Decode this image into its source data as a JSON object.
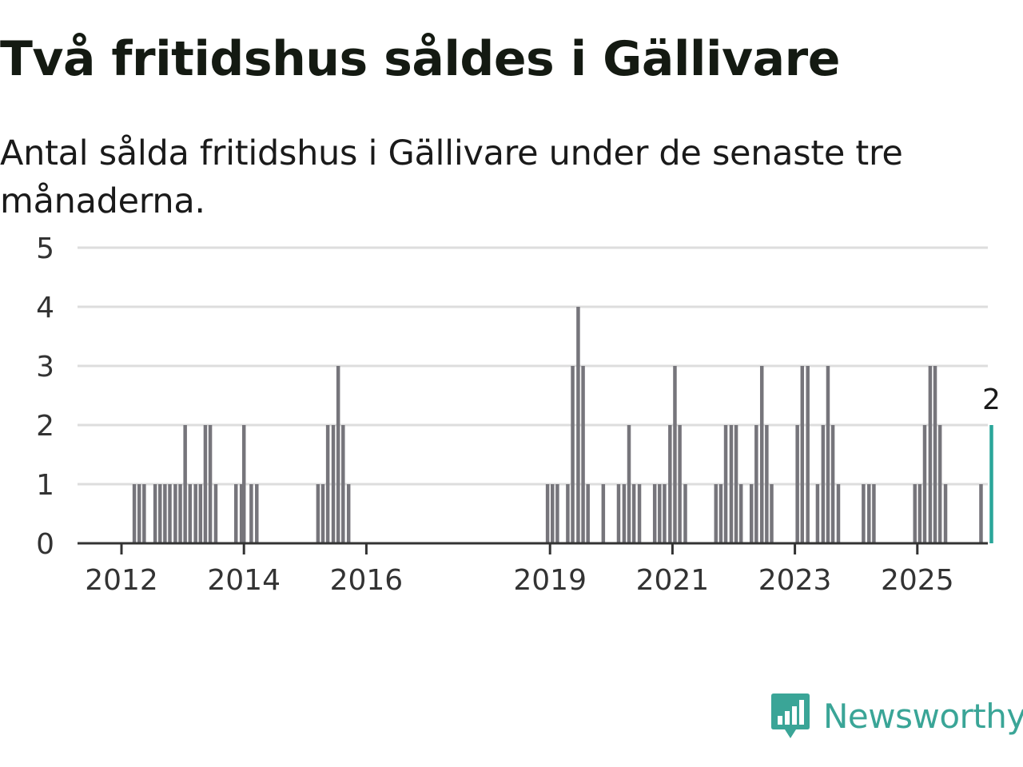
{
  "title": "Två fritidshus såldes i Gällivare",
  "subtitle": "Antal sålda fritidshus i Gällivare under de senaste tre månaderna.",
  "brand": {
    "name": "Newsworthy",
    "icon": "newsworthy-logo-icon"
  },
  "colors": {
    "bar": "#76757b",
    "highlight": "#2aa69a",
    "grid": "#dddddd",
    "axis": "#333333",
    "brand": "#3aa597"
  },
  "chart_data": {
    "type": "bar",
    "ylim": [
      0,
      5
    ],
    "yticks": [
      0,
      1,
      2,
      3,
      4,
      5
    ],
    "xticks": [
      {
        "label": "2012",
        "year": 2012
      },
      {
        "label": "2014",
        "year": 2014
      },
      {
        "label": "2016",
        "year": 2016
      },
      {
        "label": "2019",
        "year": 2019
      },
      {
        "label": "2021",
        "year": 2021
      },
      {
        "label": "2023",
        "year": 2023
      },
      {
        "label": "2025",
        "year": 2025
      }
    ],
    "x_unit": "year (monthly bars)",
    "bars": [
      {
        "t": 2012.21,
        "v": 1
      },
      {
        "t": 2012.29,
        "v": 1
      },
      {
        "t": 2012.37,
        "v": 1
      },
      {
        "t": 2012.55,
        "v": 1
      },
      {
        "t": 2012.63,
        "v": 1
      },
      {
        "t": 2012.71,
        "v": 1
      },
      {
        "t": 2012.79,
        "v": 1
      },
      {
        "t": 2012.88,
        "v": 1
      },
      {
        "t": 2012.96,
        "v": 1
      },
      {
        "t": 2013.04,
        "v": 2
      },
      {
        "t": 2013.12,
        "v": 1
      },
      {
        "t": 2013.21,
        "v": 1
      },
      {
        "t": 2013.29,
        "v": 1
      },
      {
        "t": 2013.37,
        "v": 2
      },
      {
        "t": 2013.45,
        "v": 2
      },
      {
        "t": 2013.54,
        "v": 1
      },
      {
        "t": 2013.87,
        "v": 1
      },
      {
        "t": 2013.96,
        "v": 1
      },
      {
        "t": 2014.0,
        "v": 2
      },
      {
        "t": 2014.12,
        "v": 1
      },
      {
        "t": 2014.21,
        "v": 1
      },
      {
        "t": 2015.21,
        "v": 1
      },
      {
        "t": 2015.29,
        "v": 1
      },
      {
        "t": 2015.37,
        "v": 2
      },
      {
        "t": 2015.46,
        "v": 2
      },
      {
        "t": 2015.54,
        "v": 3
      },
      {
        "t": 2015.62,
        "v": 2
      },
      {
        "t": 2015.71,
        "v": 1
      },
      {
        "t": 2018.96,
        "v": 1
      },
      {
        "t": 2019.04,
        "v": 1
      },
      {
        "t": 2019.12,
        "v": 1
      },
      {
        "t": 2019.29,
        "v": 1
      },
      {
        "t": 2019.37,
        "v": 3
      },
      {
        "t": 2019.46,
        "v": 4
      },
      {
        "t": 2019.54,
        "v": 3
      },
      {
        "t": 2019.62,
        "v": 1
      },
      {
        "t": 2019.87,
        "v": 1
      },
      {
        "t": 2020.12,
        "v": 1
      },
      {
        "t": 2020.21,
        "v": 1
      },
      {
        "t": 2020.29,
        "v": 2
      },
      {
        "t": 2020.37,
        "v": 1
      },
      {
        "t": 2020.46,
        "v": 1
      },
      {
        "t": 2020.71,
        "v": 1
      },
      {
        "t": 2020.79,
        "v": 1
      },
      {
        "t": 2020.87,
        "v": 1
      },
      {
        "t": 2020.96,
        "v": 2
      },
      {
        "t": 2021.04,
        "v": 3
      },
      {
        "t": 2021.12,
        "v": 2
      },
      {
        "t": 2021.21,
        "v": 1
      },
      {
        "t": 2021.71,
        "v": 1
      },
      {
        "t": 2021.79,
        "v": 1
      },
      {
        "t": 2021.87,
        "v": 2
      },
      {
        "t": 2021.96,
        "v": 2
      },
      {
        "t": 2022.04,
        "v": 2
      },
      {
        "t": 2022.12,
        "v": 1
      },
      {
        "t": 2022.29,
        "v": 1
      },
      {
        "t": 2022.37,
        "v": 2
      },
      {
        "t": 2022.46,
        "v": 3
      },
      {
        "t": 2022.54,
        "v": 2
      },
      {
        "t": 2022.62,
        "v": 1
      },
      {
        "t": 2023.04,
        "v": 2
      },
      {
        "t": 2023.12,
        "v": 3
      },
      {
        "t": 2023.21,
        "v": 3
      },
      {
        "t": 2023.37,
        "v": 1
      },
      {
        "t": 2023.46,
        "v": 2
      },
      {
        "t": 2023.54,
        "v": 3
      },
      {
        "t": 2023.62,
        "v": 2
      },
      {
        "t": 2023.71,
        "v": 1
      },
      {
        "t": 2024.12,
        "v": 1
      },
      {
        "t": 2024.21,
        "v": 1
      },
      {
        "t": 2024.29,
        "v": 1
      },
      {
        "t": 2024.96,
        "v": 1
      },
      {
        "t": 2025.04,
        "v": 1
      },
      {
        "t": 2025.12,
        "v": 2
      },
      {
        "t": 2025.21,
        "v": 3
      },
      {
        "t": 2025.29,
        "v": 3
      },
      {
        "t": 2025.37,
        "v": 2
      },
      {
        "t": 2025.46,
        "v": 1
      },
      {
        "t": 2026.04,
        "v": 1
      },
      {
        "t": 2026.21,
        "v": 2,
        "highlight": true,
        "label": "2"
      }
    ]
  }
}
